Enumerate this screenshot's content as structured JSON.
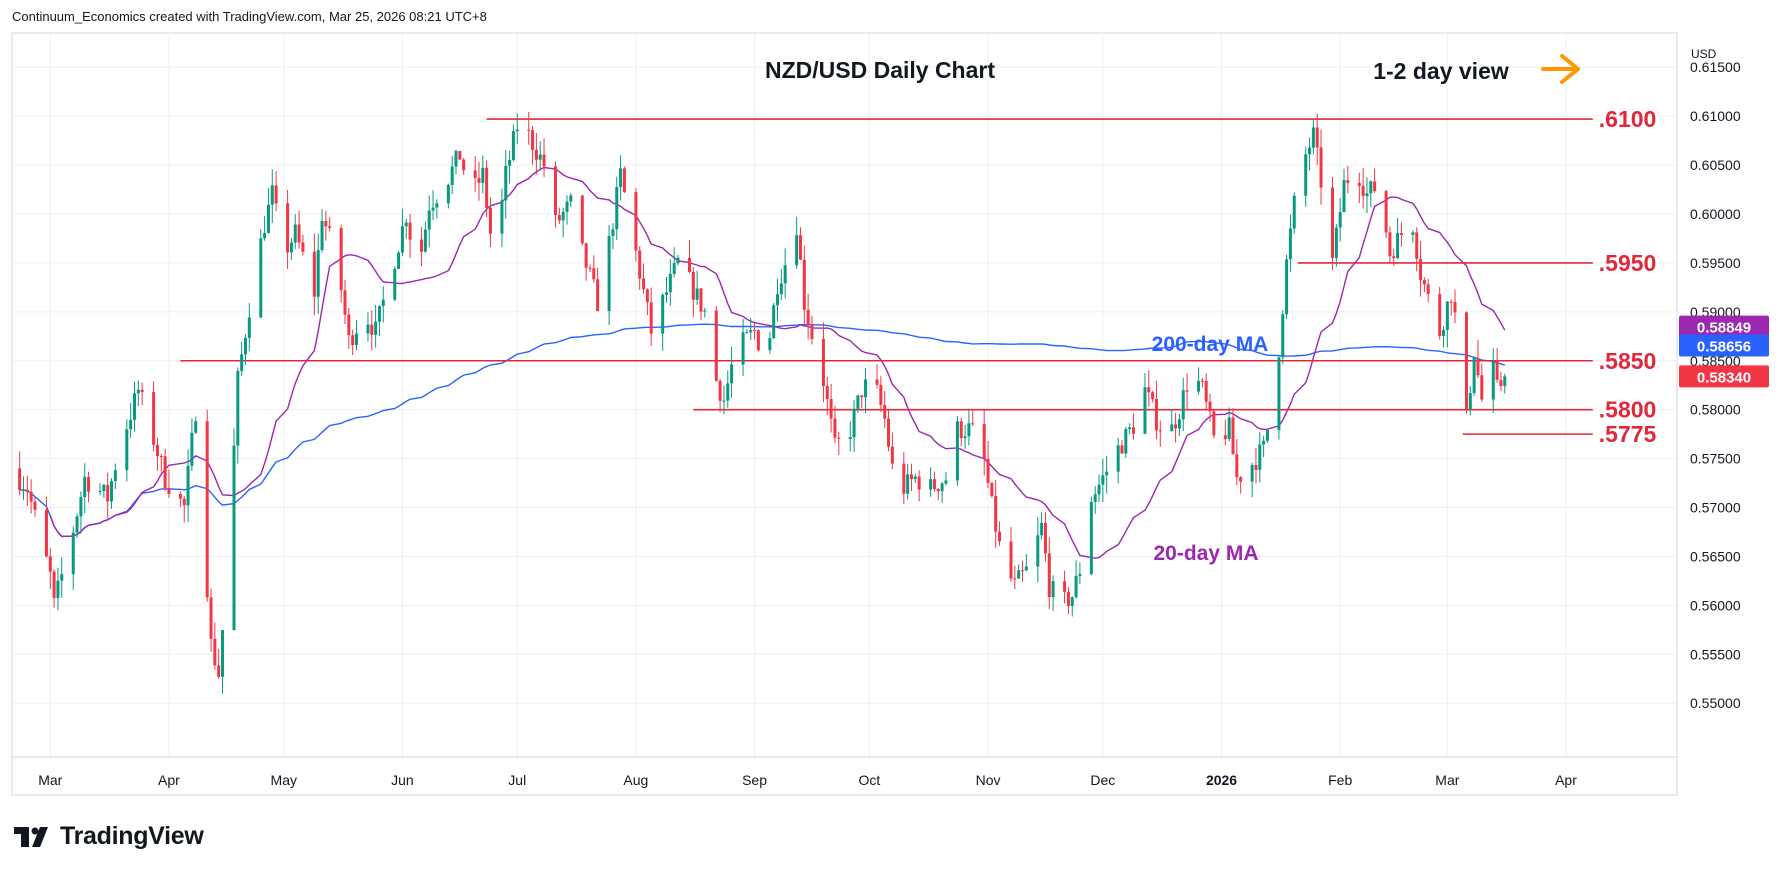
{
  "header": {
    "attribution": "Continuum_Economics created with TradingView.com, Mar 25, 2026 08:21 UTC+8"
  },
  "brand": {
    "name": "TradingView",
    "icon": "tradingview-logo-icon"
  },
  "colors": {
    "up": "#089981",
    "down": "#f23645",
    "ma200": "#2962ff",
    "ma20": "#9c27b0",
    "level": "#e0283a",
    "arrow": "#ff9800",
    "grid": "#eef0f4",
    "text": "#131722"
  },
  "chart_data": {
    "type": "candlestick",
    "title": "NZD/USD Daily Chart",
    "view_label": "1-2 day view",
    "view_icon": "arrow-right-icon",
    "currency": "USD",
    "ylim": [
      0.5445,
      0.6185
    ],
    "y_ticks": [
      "0.61500",
      "0.61000",
      "0.60500",
      "0.60000",
      "0.59500",
      "0.59000",
      "0.58500",
      "0.58000",
      "0.57500",
      "0.57000",
      "0.56500",
      "0.56000",
      "0.55500",
      "0.55000"
    ],
    "x_ticks": [
      {
        "label": "Mar",
        "day": 1
      },
      {
        "label": "Apr",
        "day": 32
      },
      {
        "label": "May",
        "day": 62
      },
      {
        "label": "Jun",
        "day": 93
      },
      {
        "label": "Jul",
        "day": 123
      },
      {
        "label": "Aug",
        "day": 154
      },
      {
        "label": "Sep",
        "day": 185
      },
      {
        "label": "Oct",
        "day": 215
      },
      {
        "label": "Nov",
        "day": 246
      },
      {
        "label": "Dec",
        "day": 276
      },
      {
        "label": "2026",
        "day": 307
      },
      {
        "label": "Feb",
        "day": 338
      },
      {
        "label": "Mar",
        "day": 366
      },
      {
        "label": "Apr",
        "day": 397
      }
    ],
    "x_range": [
      -9,
      426
    ],
    "levels": [
      {
        "label": ".6100",
        "value": 0.6097,
        "from_day": 115
      },
      {
        "label": ".5950",
        "value": 0.595,
        "from_day": 327
      },
      {
        "label": ".5850",
        "value": 0.585,
        "from_day": 35
      },
      {
        "label": ".5800",
        "value": 0.58,
        "from_day": 169
      },
      {
        "label": ".5775",
        "value": 0.5775,
        "from_day": 370
      }
    ],
    "price_tags": [
      {
        "value": "0.58849",
        "y": 0.58849,
        "color": "#9c27b0"
      },
      {
        "value": "0.58656",
        "y": 0.58656,
        "color": "#2962ff"
      },
      {
        "value": "0.58340",
        "y": 0.5834,
        "color": "#f23645"
      }
    ],
    "annotations": [
      {
        "text": "200-day MA",
        "color": "#2962ff"
      },
      {
        "text": "20-day MA",
        "color": "#9c27b0"
      }
    ],
    "anchors": [
      [
        -9,
        0.574
      ],
      [
        -5,
        0.572
      ],
      [
        1,
        0.563
      ],
      [
        2,
        0.56
      ],
      [
        6,
        0.566
      ],
      [
        10,
        0.573
      ],
      [
        16,
        0.571
      ],
      [
        19,
        0.576
      ],
      [
        24,
        0.582
      ],
      [
        28,
        0.577
      ],
      [
        31,
        0.573
      ],
      [
        36,
        0.57
      ],
      [
        39,
        0.58
      ],
      [
        43,
        0.556
      ],
      [
        45,
        0.553
      ],
      [
        47,
        0.562
      ],
      [
        50,
        0.583
      ],
      [
        54,
        0.593
      ],
      [
        57,
        0.599
      ],
      [
        59,
        0.602
      ],
      [
        62,
        0.596
      ],
      [
        65,
        0.598
      ],
      [
        70,
        0.592
      ],
      [
        72,
        0.6
      ],
      [
        76,
        0.595
      ],
      [
        79,
        0.587
      ],
      [
        83,
        0.59
      ],
      [
        86,
        0.588
      ],
      [
        90,
        0.594
      ],
      [
        94,
        0.6
      ],
      [
        97,
        0.594
      ],
      [
        100,
        0.601
      ],
      [
        104,
        0.603
      ],
      [
        108,
        0.606
      ],
      [
        111,
        0.602
      ],
      [
        114,
        0.604
      ],
      [
        117,
        0.595
      ],
      [
        120,
        0.604
      ],
      [
        123,
        0.609
      ],
      [
        126,
        0.608
      ],
      [
        130,
        0.605
      ],
      [
        133,
        0.599
      ],
      [
        137,
        0.601
      ],
      [
        140,
        0.596
      ],
      [
        144,
        0.591
      ],
      [
        147,
        0.597
      ],
      [
        150,
        0.604
      ],
      [
        154,
        0.596
      ],
      [
        158,
        0.588
      ],
      [
        162,
        0.592
      ],
      [
        165,
        0.595
      ],
      [
        168,
        0.593
      ],
      [
        172,
        0.59
      ],
      [
        175,
        0.583
      ],
      [
        177,
        0.581
      ],
      [
        180,
        0.586
      ],
      [
        185,
        0.588
      ],
      [
        188,
        0.585
      ],
      [
        191,
        0.593
      ],
      [
        194,
        0.596
      ],
      [
        196,
        0.599
      ],
      [
        198,
        0.591
      ],
      [
        201,
        0.586
      ],
      [
        203,
        0.583
      ],
      [
        206,
        0.576
      ],
      [
        210,
        0.578
      ],
      [
        213,
        0.582
      ],
      [
        216,
        0.583
      ],
      [
        219,
        0.579
      ],
      [
        221,
        0.574
      ],
      [
        224,
        0.572
      ],
      [
        227,
        0.573
      ],
      [
        231,
        0.572
      ],
      [
        235,
        0.573
      ],
      [
        238,
        0.578
      ],
      [
        241,
        0.578
      ],
      [
        244,
        0.577
      ],
      [
        247,
        0.57
      ],
      [
        250,
        0.564
      ],
      [
        253,
        0.562
      ],
      [
        257,
        0.564
      ],
      [
        260,
        0.568
      ],
      [
        262,
        0.562
      ],
      [
        265,
        0.56
      ],
      [
        268,
        0.561
      ],
      [
        271,
        0.565
      ],
      [
        273,
        0.571
      ],
      [
        276,
        0.573
      ],
      [
        280,
        0.576
      ],
      [
        285,
        0.579
      ],
      [
        287,
        0.582
      ],
      [
        290,
        0.579
      ],
      [
        293,
        0.577
      ],
      [
        296,
        0.58
      ],
      [
        299,
        0.584
      ],
      [
        302,
        0.582
      ],
      [
        305,
        0.577
      ],
      [
        309,
        0.578
      ],
      [
        311,
        0.573
      ],
      [
        314,
        0.574
      ],
      [
        318,
        0.576
      ],
      [
        321,
        0.582
      ],
      [
        324,
        0.595
      ],
      [
        326,
        0.601
      ],
      [
        329,
        0.606
      ],
      [
        331,
        0.608
      ],
      [
        334,
        0.601
      ],
      [
        336,
        0.595
      ],
      [
        339,
        0.603
      ],
      [
        342,
        0.605
      ],
      [
        345,
        0.602
      ],
      [
        348,
        0.603
      ],
      [
        351,
        0.596
      ],
      [
        354,
        0.598
      ],
      [
        357,
        0.599
      ],
      [
        359,
        0.594
      ],
      [
        362,
        0.59
      ],
      [
        364,
        0.588
      ],
      [
        367,
        0.592
      ],
      [
        369,
        0.587
      ],
      [
        371,
        0.579
      ],
      [
        373,
        0.586
      ],
      [
        375,
        0.581
      ],
      [
        377,
        0.586
      ],
      [
        379,
        0.582
      ],
      [
        381,
        0.5834
      ]
    ]
  }
}
